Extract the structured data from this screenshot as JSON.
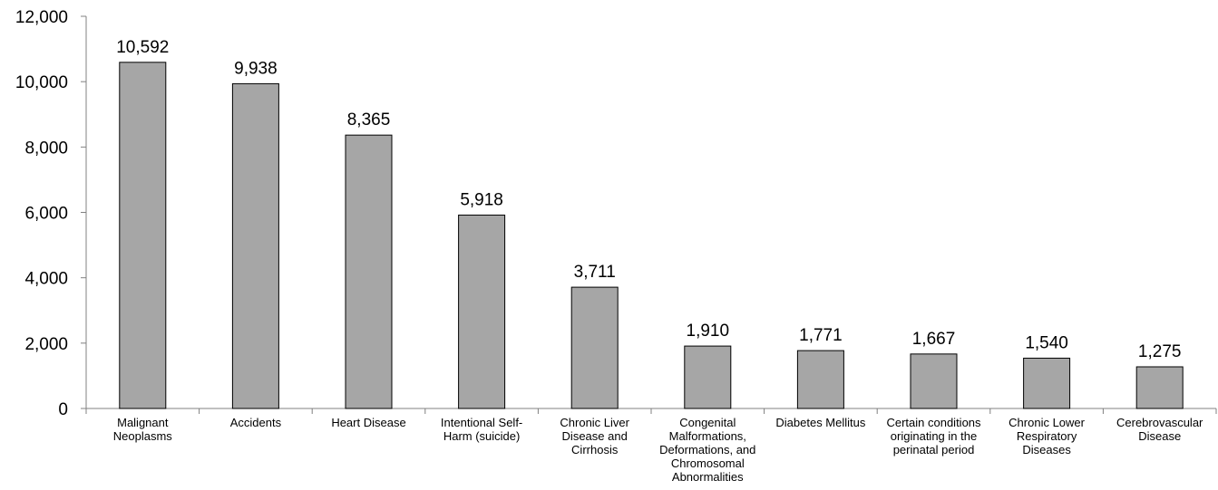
{
  "chart_data": {
    "type": "bar",
    "categories": [
      "Malignant Neoplasms",
      "Accidents",
      "Heart Disease",
      "Intentional Self-Harm (suicide)",
      "Chronic Liver Disease and Cirrhosis",
      "Congenital Malformations, Deformations, and Chromosomal Abnormalities",
      "Diabetes Mellitus",
      "Certain conditions originating in the perinatal period",
      "Chronic Lower Respiratory Diseases",
      "Cerebrovascular Disease"
    ],
    "category_label_lines": [
      [
        "Malignant",
        "Neoplasms"
      ],
      [
        "Accidents"
      ],
      [
        "Heart Disease"
      ],
      [
        "Intentional Self-",
        "Harm (suicide)"
      ],
      [
        "Chronic Liver",
        "Disease and",
        "Cirrhosis"
      ],
      [
        "Congenital",
        "Malformations,",
        "Deformations, and",
        "Chromosomal",
        "Abnormalities"
      ],
      [
        "Diabetes Mellitus"
      ],
      [
        "Certain conditions",
        "originating in the",
        "perinatal period"
      ],
      [
        "Chronic Lower",
        "Respiratory",
        "Diseases"
      ],
      [
        "Cerebrovascular",
        "Disease"
      ]
    ],
    "values": [
      10592,
      9938,
      8365,
      5918,
      3711,
      1910,
      1771,
      1667,
      1540,
      1275
    ],
    "value_labels": [
      "10,592",
      "9,938",
      "8,365",
      "5,918",
      "3,711",
      "1,910",
      "1,771",
      "1,667",
      "1,540",
      "1,275"
    ],
    "yticks": [
      0,
      2000,
      4000,
      6000,
      8000,
      10000,
      12000
    ],
    "ytick_labels": [
      "0",
      "2,000",
      "4,000",
      "6,000",
      "8,000",
      "10,000",
      "12,000"
    ],
    "ylim": [
      0,
      12000
    ],
    "title": "",
    "xlabel": "",
    "ylabel": "",
    "grid": false,
    "legend": "none",
    "colors": {
      "bar_fill": "#a6a6a6",
      "bar_stroke": "#000000",
      "axis": "#808080",
      "text": "#000000"
    }
  }
}
